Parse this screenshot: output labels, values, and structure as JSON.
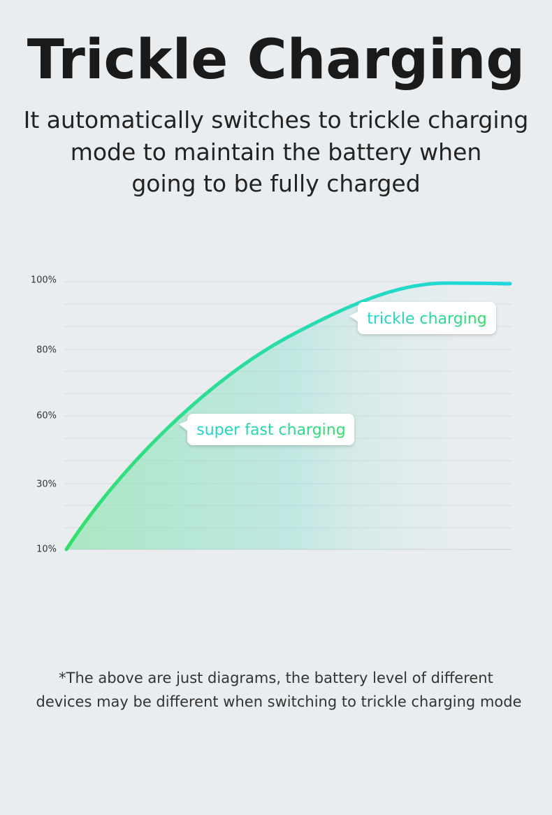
{
  "header": {
    "title": "Trickle Charging",
    "subtitle_lines": [
      "It automatically switches to trickle charging",
      "mode to maintain the battery when",
      "going to be fully charged"
    ]
  },
  "diagram": {
    "axis_labels": [
      "100%",
      "80%",
      "60%",
      "30%",
      "10%"
    ],
    "callouts": [
      "trickle charging",
      "super fast charging"
    ]
  },
  "footnote_lines": [
    "*The above are just diagrams, the battery level of different",
    "devices may be different when switching to trickle charging mode"
  ]
}
